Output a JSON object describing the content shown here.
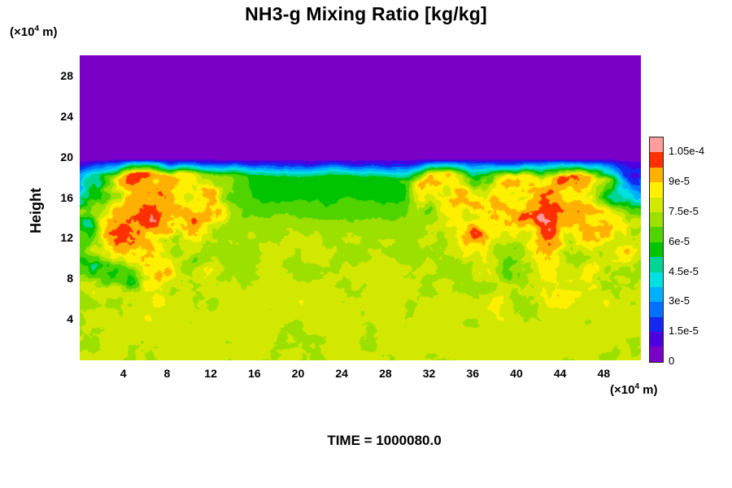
{
  "page": {
    "title": "NH3-g Mixing Ratio [kg/kg]",
    "time_label": "TIME = 1000080.0"
  },
  "chart_data": {
    "type": "heatmap",
    "title": "NH3-g Mixing Ratio [kg/kg]",
    "xlim": [
      0,
      51.4
    ],
    "ylim": [
      0,
      30.1
    ],
    "axes": {
      "ylabel": "Height",
      "y_unit": {
        "prefix": "(×10",
        "sup": "4",
        "suffix": " m)"
      },
      "x_unit": {
        "prefix": "(×10",
        "sup": "4",
        "suffix": " m)"
      },
      "x_ticks": [
        4,
        8,
        12,
        16,
        20,
        24,
        28,
        32,
        36,
        40,
        44,
        48
      ],
      "y_ticks": [
        4,
        8,
        12,
        16,
        20,
        24,
        28
      ]
    },
    "value_scale": 1e-05,
    "level_step": 7.5e-06,
    "level_min": 0,
    "colors": [
      "#7a00c8",
      "#4a00e0",
      "#1428f0",
      "#0070ff",
      "#00b0ff",
      "#00e0e0",
      "#00d494",
      "#00c400",
      "#50d400",
      "#9ce000",
      "#d2e800",
      "#fff000",
      "#ffb000",
      "#ff3000",
      "#ff9c9c"
    ],
    "colorbar_tick_labels": [
      "0",
      "1.5e-5",
      "3e-5",
      "4.5e-5",
      "6e-5",
      "7.5e-5",
      "9e-5",
      "1.05e-4"
    ],
    "grid_x_step": 2,
    "grid_y_step": 2,
    "grid_y_top": 30,
    "values": [
      [
        0,
        0,
        0,
        0,
        0,
        0,
        0,
        0,
        0,
        0,
        0,
        0,
        0,
        0,
        0,
        0,
        0,
        0,
        0,
        0,
        0,
        0,
        0,
        0,
        0,
        0,
        0
      ],
      [
        0,
        0,
        0,
        0,
        0,
        0,
        0,
        0,
        0,
        0,
        0,
        0,
        0,
        0,
        0,
        0,
        0,
        0,
        0,
        0,
        0,
        0,
        0,
        0,
        0,
        0,
        0
      ],
      [
        0,
        0,
        0,
        0,
        0,
        0,
        0,
        0,
        0,
        0,
        0,
        0,
        0,
        0,
        0,
        0,
        0,
        0,
        0,
        0,
        0,
        0,
        0,
        0,
        0,
        0,
        0
      ],
      [
        0,
        0,
        0,
        0,
        0,
        0,
        0,
        0,
        0,
        0,
        0,
        0,
        0,
        0,
        0,
        0,
        0,
        0,
        0,
        0,
        0,
        0,
        0,
        0,
        0,
        0,
        0
      ],
      [
        0,
        0,
        0,
        0,
        0,
        0,
        0,
        0,
        0,
        0,
        0,
        0,
        0,
        0,
        0,
        0,
        0,
        0,
        0,
        0,
        0,
        0,
        0,
        0,
        0,
        0,
        0
      ],
      [
        0,
        0,
        0,
        0,
        0,
        0,
        0,
        0,
        0,
        0,
        0,
        0,
        0,
        0,
        0,
        0,
        0,
        0,
        0,
        0,
        0,
        0,
        0,
        0,
        0,
        0,
        0
      ],
      [
        3,
        5,
        9,
        10,
        9,
        8.5,
        7.5,
        6.2,
        5.8,
        5.8,
        5.8,
        5.8,
        5.8,
        5.8,
        5.8,
        5.8,
        8.5,
        9,
        6.4,
        7,
        8.5,
        9,
        9.5,
        9,
        8,
        4,
        2
      ],
      [
        4,
        7,
        9.5,
        10,
        9,
        8,
        9.5,
        7,
        5.8,
        5.8,
        5.8,
        5.8,
        5.8,
        5.8,
        5.8,
        5.8,
        7,
        8.5,
        9.5,
        8,
        9,
        10,
        10,
        9,
        8,
        5,
        3
      ],
      [
        5,
        9,
        10.5,
        10,
        9.5,
        9,
        8,
        7,
        6.8,
        6.8,
        6.8,
        6.8,
        6.8,
        6.8,
        6.8,
        6.8,
        7.5,
        9,
        9,
        8,
        9.5,
        10,
        10,
        9.5,
        9,
        7,
        5
      ],
      [
        6,
        8,
        10,
        9,
        7,
        8.5,
        7.5,
        7.5,
        7.5,
        7.5,
        7.5,
        7.5,
        7.5,
        7.5,
        7.5,
        7.5,
        7.5,
        8,
        9.5,
        8,
        8.5,
        9,
        9.5,
        9,
        8.5,
        9,
        7
      ],
      [
        7,
        5,
        8.5,
        9.5,
        8,
        7,
        7.5,
        7.5,
        7.5,
        7.5,
        7.5,
        7.5,
        7.5,
        7.5,
        7.5,
        7.5,
        7.5,
        8,
        9,
        7.5,
        7,
        8.5,
        8,
        7.5,
        8.5,
        8,
        7.5
      ],
      [
        6,
        7,
        5,
        8.5,
        9,
        7.5,
        7.5,
        7.5,
        7.6,
        7.6,
        7.6,
        7.6,
        7.6,
        7.6,
        7.6,
        7.6,
        7.6,
        7.6,
        8,
        7.6,
        7.6,
        7.6,
        8,
        7.6,
        7.6,
        7.6,
        7.6
      ],
      [
        7,
        7.8,
        8,
        7.6,
        8.2,
        7.6,
        7.6,
        8,
        7.6,
        7.6,
        8.2,
        7.6,
        7.6,
        7.6,
        8,
        7.6,
        7.6,
        8.2,
        7.6,
        8,
        7.6,
        7.6,
        8.2,
        7.6,
        8,
        7.6,
        7.6
      ],
      [
        7.6,
        8,
        7.6,
        8.2,
        7.6,
        7.6,
        8,
        7.6,
        8.2,
        7.6,
        7.6,
        8,
        7.6,
        7.6,
        8.2,
        7.6,
        8,
        7.6,
        7.6,
        8.2,
        7.6,
        7.6,
        8,
        7.6,
        7.6,
        8,
        7.6
      ],
      [
        7.6,
        7.6,
        8,
        7.6,
        7.6,
        8,
        7.6,
        7.6,
        8,
        7.6,
        7.6,
        7.6,
        8,
        7.6,
        7.6,
        8,
        7.6,
        7.6,
        8,
        7.6,
        7.6,
        8,
        7.6,
        7.6,
        8,
        7.6,
        7.6
      ],
      [
        7.6,
        7.6,
        7.6,
        7.6,
        7.6,
        7.6,
        7.6,
        7.6,
        7.6,
        7.6,
        7.6,
        7.6,
        7.6,
        7.6,
        7.6,
        7.6,
        7.6,
        7.6,
        7.6,
        7.6,
        7.6,
        7.6,
        7.6,
        7.6,
        7.6,
        7.6,
        7.6
      ]
    ],
    "noise": {
      "distortion_freq": 0.3,
      "value_freq": 0.55,
      "regions": [
        {
          "x0": -3,
          "x1": 15,
          "y0": 4,
          "y1": 19.6,
          "dist": 2.2,
          "val": 1.7
        },
        {
          "x0": 29,
          "x1": 55,
          "y0": 4,
          "y1": 19.6,
          "dist": 2.2,
          "val": 1.7
        },
        {
          "x0": -3,
          "x1": 55,
          "y0": 17.0,
          "y1": 19.9,
          "dist": 0.5,
          "val": 0.7,
          "m": 0.7
        },
        {
          "x0": -3,
          "x1": 55,
          "y0": -2,
          "y1": 17.5,
          "dist": 0.9,
          "val": 0.5
        }
      ]
    }
  }
}
